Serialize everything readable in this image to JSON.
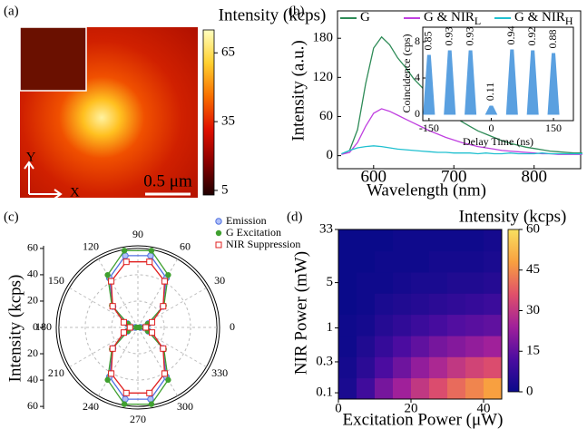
{
  "chart_data": [
    {
      "type": "image",
      "panel_label": "(a)",
      "title": "Intensity (kcps)",
      "colorbar_lim": [
        3,
        75
      ],
      "colorbar_ticks": [
        5,
        35,
        65
      ],
      "colormap": [
        "#200000",
        "#8b0000",
        "#e01000",
        "#f87000",
        "#ffd030",
        "#ffffc0"
      ],
      "scale_bar": "0.5 μm",
      "xlabel": "X",
      "ylabel": "Y"
    },
    {
      "type": "line",
      "panel_label": "(b)",
      "xlabel": "Wavelength (nm)",
      "ylabel": "Intensity (a.u.)",
      "xlim": [
        555,
        858
      ],
      "ylim": [
        -20,
        222
      ],
      "xticks": [
        600,
        700,
        800
      ],
      "yticks": [
        0,
        60,
        120,
        180
      ],
      "x": [
        560,
        570,
        580,
        590,
        600,
        610,
        620,
        630,
        640,
        650,
        660,
        670,
        680,
        690,
        700,
        710,
        720,
        730,
        740,
        750,
        760,
        770,
        780,
        790,
        800,
        810,
        820,
        830,
        840,
        850,
        860
      ],
      "series": [
        {
          "name": "G",
          "color": "#2e8b57",
          "values": [
            2,
            8,
            40,
            110,
            165,
            182,
            170,
            150,
            135,
            118,
            105,
            92,
            80,
            70,
            60,
            52,
            45,
            38,
            33,
            28,
            23,
            19,
            16,
            13,
            11,
            9,
            7,
            6,
            5,
            4,
            4
          ]
        },
        {
          "name": "G & NIR",
          "subscript": "L",
          "color": "#c040e0",
          "values": [
            2,
            5,
            20,
            45,
            65,
            72,
            68,
            62,
            56,
            50,
            44,
            38,
            33,
            28,
            24,
            20,
            17,
            14,
            12,
            10,
            8,
            7,
            6,
            5,
            4,
            3,
            3,
            2,
            2,
            2,
            2
          ]
        },
        {
          "name": "G & NIR",
          "subscript": "H",
          "color": "#20c0d0",
          "values": [
            3,
            8,
            12,
            14,
            15,
            14,
            12,
            10,
            9,
            8,
            7,
            6,
            5,
            5,
            4,
            4,
            4,
            3,
            4,
            3,
            3,
            4,
            3,
            3,
            3,
            4,
            3,
            3,
            3,
            3,
            3
          ]
        }
      ],
      "inset": {
        "type": "spikes",
        "xlabel": "Delay Time (ns)",
        "ylabel": "Coincidence (cps)",
        "color": "#5aa0e0",
        "xlim": [
          -165,
          198
        ],
        "ylim": [
          -0.7,
          9.6
        ],
        "xticks": [
          -150,
          0,
          150
        ],
        "yticks": [
          0,
          4,
          8
        ],
        "peak_x": [
          -150,
          -100,
          -50,
          0,
          50,
          100,
          150
        ],
        "peaks": [
          6.5,
          7.0,
          7.0,
          0.9,
          7.1,
          7.0,
          6.7
        ],
        "annotations": [
          "0.85",
          "0.93",
          "0.93",
          "0.11",
          "0.94",
          "0.92",
          "0.88"
        ]
      }
    },
    {
      "type": "polar",
      "panel_label": "(c)",
      "ylabel": "Intensity (kcps)",
      "rlim": [
        0,
        62
      ],
      "rticks": [
        20,
        40,
        60
      ],
      "angle_ticks": [
        0,
        30,
        60,
        90,
        120,
        150,
        180,
        210,
        240,
        270,
        300,
        330
      ],
      "yticks": [
        {
          "value": 60,
          "label": "60"
        },
        {
          "value": 40,
          "label": "40"
        },
        {
          "value": 20,
          "label": "20"
        },
        0,
        {
          "value": -20,
          "label": "20"
        },
        {
          "value": -40,
          "label": "40"
        },
        {
          "value": -60,
          "label": "60"
        }
      ],
      "angles": [
        0,
        20,
        40,
        60,
        80,
        100,
        120,
        140,
        160,
        180,
        200,
        220,
        240,
        260,
        280,
        300,
        320,
        340
      ],
      "series": [
        {
          "name": "Emission",
          "color": "#5070e0",
          "marker": "circle",
          "values": [
            2,
            8.4,
            24.7,
            43.3,
            55.3,
            55.3,
            43.3,
            24.7,
            8.4,
            2,
            8.4,
            24.7,
            43.3,
            55.3,
            55.3,
            43.3,
            24.7,
            8.4
          ]
        },
        {
          "name": "G Excitation",
          "color": "#40a030",
          "marker": "dot",
          "values": [
            1,
            8,
            25.8,
            46,
            59.2,
            59.2,
            46,
            25.8,
            8,
            1,
            8,
            25.8,
            46,
            59.2,
            59.2,
            46,
            25.8,
            8
          ]
        },
        {
          "name": "NIR Suppression",
          "color": "#e02020",
          "marker": "square",
          "values": [
            6,
            11.4,
            25,
            40.5,
            50.6,
            50.6,
            40.5,
            25,
            11.4,
            6,
            11.4,
            25,
            40.5,
            50.6,
            50.6,
            40.5,
            25,
            11.4
          ]
        }
      ]
    },
    {
      "type": "heatmap",
      "panel_label": "(d)",
      "title": "Intensity (kcps)",
      "xlabel": "Excitation Power (μW)",
      "ylabel": "NIR Power (mW)",
      "xlim": [
        0,
        45
      ],
      "xticks": [
        0,
        20,
        40
      ],
      "ylim": [
        0.08,
        33
      ],
      "yticks": [
        0.1,
        0.3,
        1,
        5,
        33
      ],
      "log_y": true,
      "x_bins": [
        0,
        5,
        10,
        15,
        20,
        25,
        30,
        35,
        40,
        45
      ],
      "y_bins": [
        0.08,
        0.17,
        0.36,
        0.76,
        1.62,
        3.43,
        7.28,
        15.4,
        33
      ],
      "z": [
        [
          3,
          10,
          18,
          24,
          30,
          35,
          40,
          44,
          48
        ],
        [
          2,
          6,
          12,
          17,
          22,
          26,
          30,
          33,
          35
        ],
        [
          1,
          4,
          8,
          12,
          15,
          18,
          20,
          22,
          24
        ],
        [
          1,
          2,
          5,
          7,
          9,
          11,
          13,
          14,
          15
        ],
        [
          0,
          1,
          3,
          4,
          5,
          6,
          7,
          8,
          9
        ],
        [
          0,
          1,
          1,
          2,
          3,
          3,
          4,
          4,
          5
        ],
        [
          0,
          0,
          1,
          1,
          1,
          2,
          2,
          2,
          3
        ],
        [
          0,
          0,
          0,
          1,
          1,
          1,
          1,
          1,
          2
        ]
      ],
      "zlim": [
        0,
        60
      ],
      "zticks": [
        0,
        15,
        30,
        45,
        60
      ],
      "colormap": [
        "#0a0a8a",
        "#4b0ca0",
        "#a0209a",
        "#e0506a",
        "#f8a040",
        "#f8e060"
      ]
    }
  ]
}
